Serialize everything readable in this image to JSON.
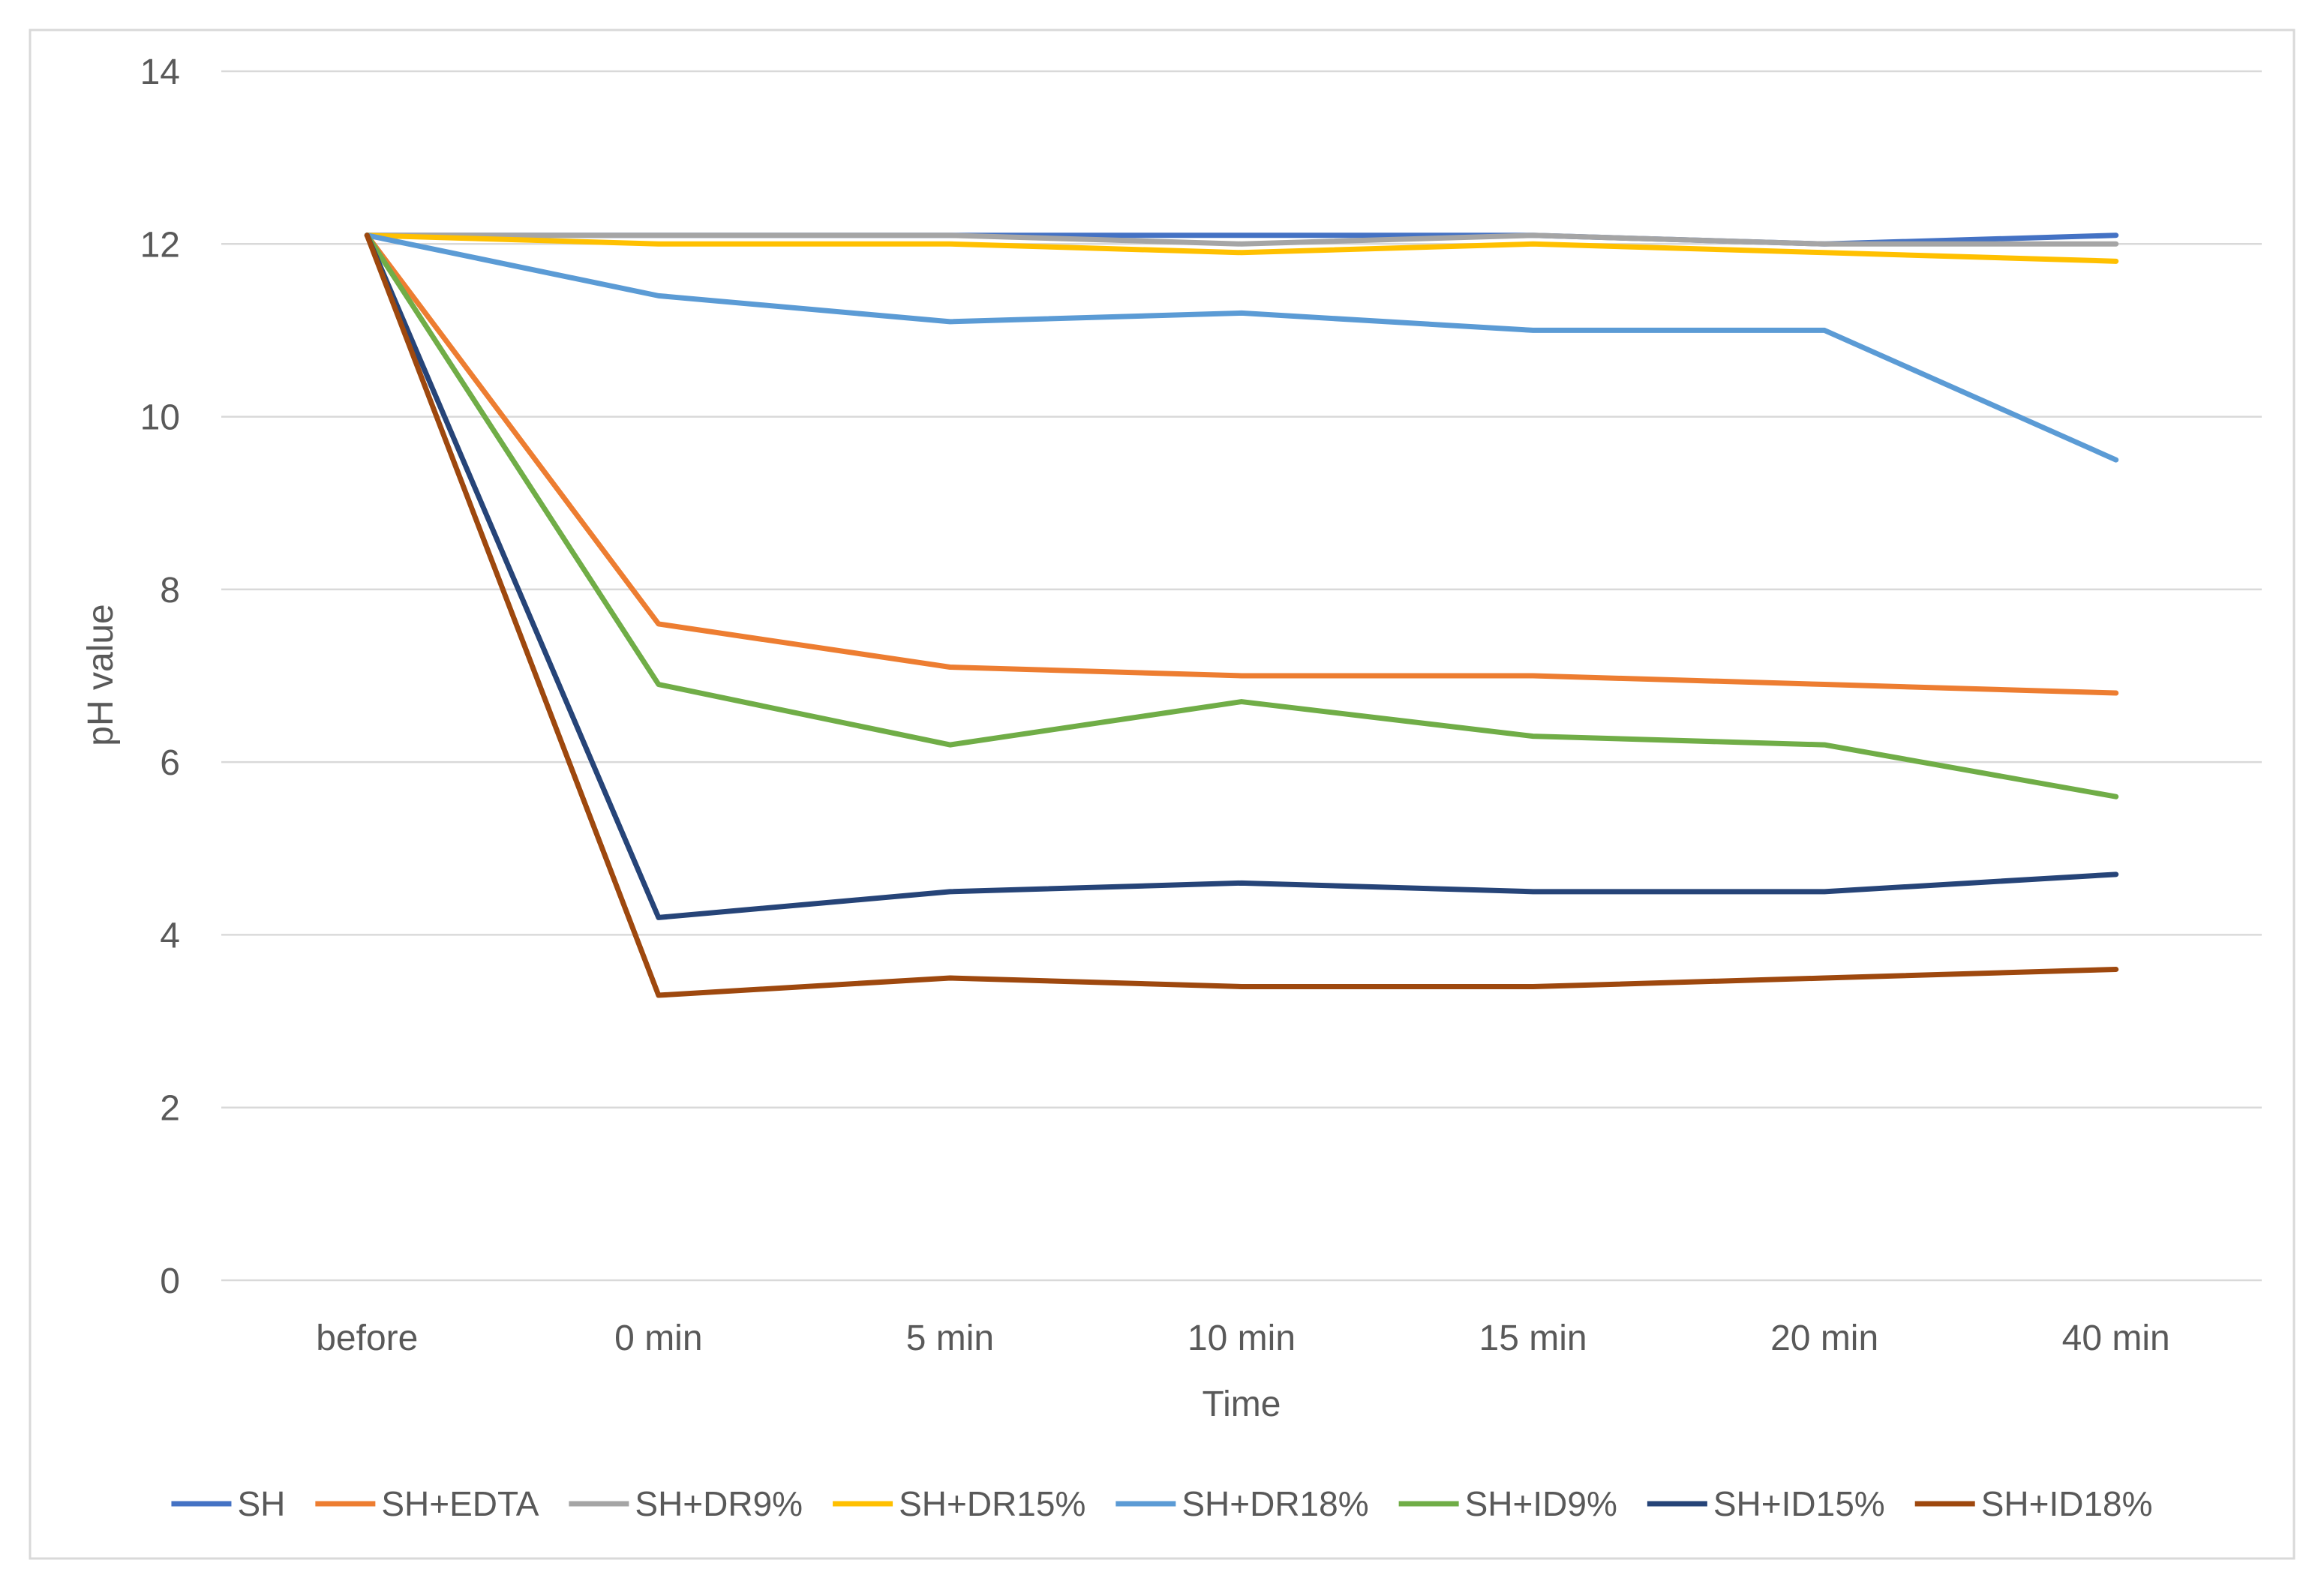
{
  "chart_data": {
    "type": "line",
    "title": "",
    "xlabel": "Time",
    "ylabel": "pH value",
    "categories": [
      "before",
      "0 min",
      "5 min",
      "10 min",
      "15 min",
      "20 min",
      "40 min"
    ],
    "ylim": [
      0,
      14
    ],
    "yticks": [
      "0",
      "2",
      "4",
      "6",
      "8",
      "10",
      "12",
      "14"
    ],
    "grid": "horizontal",
    "legend_position": "bottom",
    "series": [
      {
        "name": "SH",
        "color": "#4472C4",
        "values": [
          12.1,
          12.1,
          12.1,
          12.1,
          12.1,
          12.0,
          12.1
        ]
      },
      {
        "name": "SH+EDTA",
        "color": "#ED7D31",
        "values": [
          12.1,
          7.6,
          7.1,
          7.0,
          7.0,
          6.9,
          6.8
        ]
      },
      {
        "name": "SH+DR9%",
        "color": "#A5A5A5",
        "values": [
          12.1,
          12.1,
          12.1,
          12.0,
          12.1,
          12.0,
          12.0
        ]
      },
      {
        "name": "SH+DR15%",
        "color": "#FFC000",
        "values": [
          12.1,
          12.0,
          12.0,
          11.9,
          12.0,
          11.9,
          11.8
        ]
      },
      {
        "name": "SH+DR18%",
        "color": "#5B9BD5",
        "values": [
          12.1,
          11.4,
          11.1,
          11.2,
          11.0,
          11.0,
          9.5
        ]
      },
      {
        "name": "SH+ID9%",
        "color": "#70AD47",
        "values": [
          12.1,
          6.9,
          6.2,
          6.7,
          6.3,
          6.2,
          5.6
        ]
      },
      {
        "name": "SH+ID15%",
        "color": "#264478",
        "values": [
          12.1,
          4.2,
          4.5,
          4.6,
          4.5,
          4.5,
          4.7
        ]
      },
      {
        "name": "SH+ID18%",
        "color": "#9E480E",
        "values": [
          12.1,
          3.3,
          3.5,
          3.4,
          3.4,
          3.5,
          3.6
        ]
      }
    ]
  }
}
